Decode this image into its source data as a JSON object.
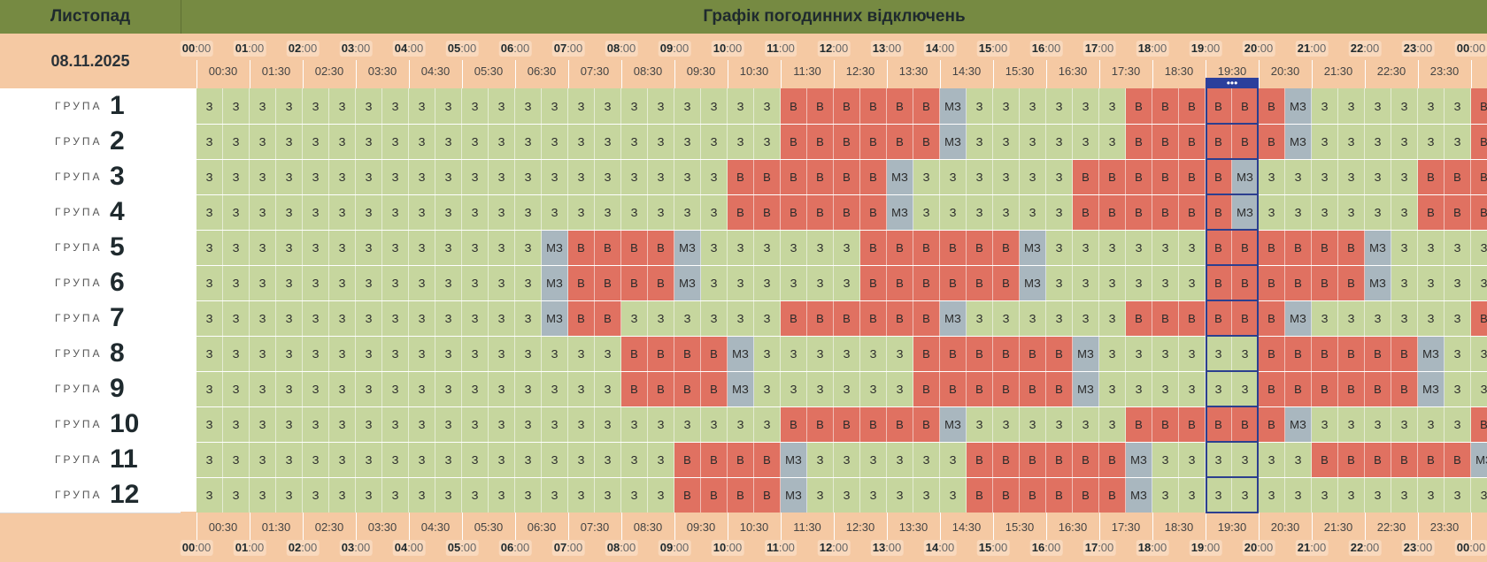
{
  "header": {
    "month": "Листопад",
    "title": "Графік погодинних відключень",
    "date": "08.11.2025"
  },
  "timeline": {
    "hours": [
      "00",
      "01",
      "02",
      "03",
      "04",
      "05",
      "06",
      "07",
      "08",
      "09",
      "10",
      "11",
      "12",
      "13",
      "14",
      "15",
      "16",
      "17",
      "18",
      "19",
      "20",
      "21",
      "22",
      "23",
      "00"
    ],
    "minutes_suffix": ":00",
    "halves": [
      "00:30",
      "01:30",
      "02:30",
      "03:30",
      "04:30",
      "05:30",
      "06:30",
      "07:30",
      "08:30",
      "09:30",
      "10:30",
      "11:30",
      "12:30",
      "13:30",
      "14:30",
      "15:30",
      "16:30",
      "17:30",
      "18:30",
      "19:30",
      "20:30",
      "21:30",
      "22:30",
      "23:30"
    ]
  },
  "group_word": "ГРУПА",
  "legend_codes": {
    "on": "З",
    "off": "В",
    "maybe": "МЗ"
  },
  "colors": {
    "on": "#c6d69e",
    "off": "#e07161",
    "maybe": "#a9b7bf",
    "header": "#768a42",
    "timebar": "#f5c9a3",
    "current": "#2c3f8f"
  },
  "current_slot_marker": "•••",
  "current_slot_hour": 19,
  "groups": [
    {
      "number": "1",
      "row": "ЗЗЗЗЗЗЗЗЗЗЗЗЗЗЗЗЗЗЗЗЗЗВВВВВВMЗЗЗЗЗЗВВВВВВMЗЗЗЗЗЗВВ"
    },
    {
      "number": "2",
      "row": "ЗЗЗЗЗЗЗЗЗЗЗЗЗЗЗЗЗЗЗЗЗЗВВВВВВMЗЗЗЗЗЗВВВВВВMЗЗЗЗЗЗВВ"
    },
    {
      "number": "3",
      "row": "ЗЗЗЗЗЗЗЗЗЗЗЗЗЗЗЗЗЗЗЗВВВВВВMЗЗЗЗЗЗВВВВВВMЗЗЗЗЗЗВВВВ"
    },
    {
      "number": "4",
      "row": "ЗЗЗЗЗЗЗЗЗЗЗЗЗЗЗЗЗЗЗЗВВВВВВMЗЗЗЗЗЗВВВВВВMЗЗЗЗЗЗВВВВ"
    },
    {
      "number": "5",
      "row": "ЗЗЗЗЗЗЗЗЗЗЗЗЗMВВВВMЗЗЗЗЗЗВВВВВВMЗЗЗЗЗЗВВВВВВMЗЗЗЗЗ"
    },
    {
      "number": "6",
      "row": "ЗЗЗЗЗЗЗЗЗЗЗЗЗMВВВВMЗЗЗЗЗЗВВВВВВMЗЗЗЗЗЗВВВВВВMЗЗЗЗЗ"
    },
    {
      "number": "7",
      "row": "ЗЗЗЗЗЗЗЗЗЗЗЗЗMВВЗЗЗЗЗЗВВВВВВMЗЗЗЗЗЗВВВВВВMЗЗЗЗЗЗВВ"
    },
    {
      "number": "8",
      "row": "ЗЗЗЗЗЗЗЗЗЗЗЗЗЗЗЗВВВВMЗЗЗЗЗЗВВВВВВMЗЗЗЗЗЗВВВВВВMЗЗЗ"
    },
    {
      "number": "9",
      "row": "ЗЗЗЗЗЗЗЗЗЗЗЗЗЗЗЗВВВВMЗЗЗЗЗЗВВВВВВMЗЗЗЗЗЗВВВВВВMЗЗЗ"
    },
    {
      "number": "10",
      "row": "ЗЗЗЗЗЗЗЗЗЗЗЗЗЗЗЗЗЗЗЗЗЗВВВВВВMЗЗЗЗЗЗВВВВВВMЗЗЗЗЗЗВВ"
    },
    {
      "number": "11",
      "row": "ЗЗЗЗЗЗЗЗЗЗЗЗЗЗЗЗЗЗВВВВMЗЗЗЗЗЗВВВВВВMЗЗЗЗЗЗВВВВВВMЗ"
    },
    {
      "number": "12",
      "row": "ЗЗЗЗЗЗЗЗЗЗЗЗЗЗЗЗЗЗВВВВMЗЗЗЗЗЗВВВВВВMЗЗЗЗЗЗЗЗЗЗЗЗЗЗ"
    }
  ]
}
